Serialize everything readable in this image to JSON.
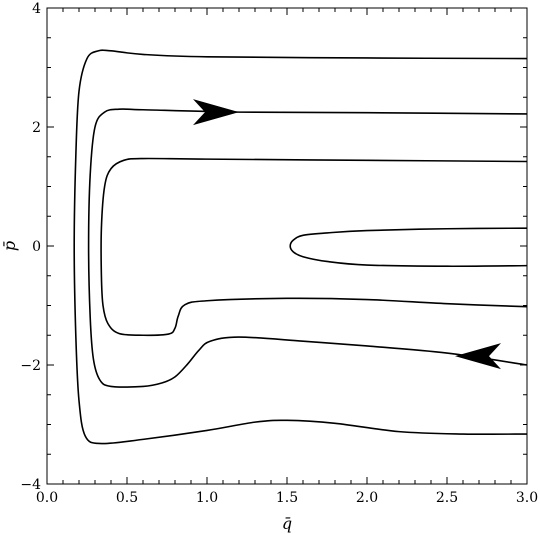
{
  "chart_data": {
    "type": "line",
    "title": "",
    "xlabel": "q̄",
    "ylabel": "p̄",
    "xlim": [
      0.0,
      3.0
    ],
    "ylim": [
      -4,
      4
    ],
    "xticks": [
      0.0,
      0.5,
      1.0,
      1.5,
      2.0,
      2.5,
      3.0
    ],
    "xtick_labels": [
      "0.0",
      "0.5",
      "1.0",
      "1.5",
      "2.0",
      "2.5",
      "3.0"
    ],
    "yticks": [
      -4,
      -2,
      0,
      2,
      4
    ],
    "ytick_labels": [
      "−4",
      "−2",
      "0",
      "2",
      "4"
    ],
    "grid": false,
    "series": [
      {
        "points": [
          [
            3.0,
            3.15
          ],
          [
            2.0,
            3.16
          ],
          [
            1.0,
            3.18
          ],
          [
            0.6,
            3.22
          ],
          [
            0.4,
            3.28
          ],
          [
            0.32,
            3.28
          ],
          [
            0.25,
            3.15
          ],
          [
            0.2,
            2.6
          ],
          [
            0.18,
            1.5
          ],
          [
            0.17,
            0.0
          ],
          [
            0.18,
            -1.5
          ],
          [
            0.2,
            -2.6
          ],
          [
            0.24,
            -3.2
          ],
          [
            0.34,
            -3.32
          ],
          [
            0.6,
            -3.25
          ],
          [
            1.0,
            -3.1
          ],
          [
            1.3,
            -2.96
          ],
          [
            1.5,
            -2.93
          ],
          [
            1.8,
            -2.98
          ],
          [
            2.2,
            -3.12
          ],
          [
            2.6,
            -3.16
          ],
          [
            3.0,
            -3.16
          ]
        ]
      },
      {
        "points": [
          [
            3.0,
            2.22
          ],
          [
            2.0,
            2.24
          ],
          [
            1.2,
            2.25
          ],
          [
            0.6,
            2.29
          ],
          [
            0.45,
            2.3
          ],
          [
            0.36,
            2.25
          ],
          [
            0.3,
            2.0
          ],
          [
            0.27,
            1.2
          ],
          [
            0.26,
            0.0
          ],
          [
            0.27,
            -1.2
          ],
          [
            0.29,
            -1.9
          ],
          [
            0.33,
            -2.25
          ],
          [
            0.4,
            -2.36
          ],
          [
            0.6,
            -2.36
          ],
          [
            0.72,
            -2.3
          ],
          [
            0.8,
            -2.2
          ],
          [
            0.88,
            -1.98
          ],
          [
            0.95,
            -1.75
          ],
          [
            1.02,
            -1.6
          ],
          [
            1.2,
            -1.53
          ],
          [
            1.6,
            -1.6
          ],
          [
            2.0,
            -1.68
          ],
          [
            2.5,
            -1.8
          ],
          [
            3.0,
            -2.0
          ]
        ]
      },
      {
        "points": [
          [
            3.0,
            1.42
          ],
          [
            2.0,
            1.44
          ],
          [
            1.0,
            1.46
          ],
          [
            0.6,
            1.47
          ],
          [
            0.48,
            1.44
          ],
          [
            0.4,
            1.3
          ],
          [
            0.36,
            1.0
          ],
          [
            0.34,
            0.3
          ],
          [
            0.34,
            -0.5
          ],
          [
            0.35,
            -1.0
          ],
          [
            0.38,
            -1.3
          ],
          [
            0.45,
            -1.47
          ],
          [
            0.6,
            -1.5
          ],
          [
            0.76,
            -1.48
          ],
          [
            0.8,
            -1.38
          ],
          [
            0.82,
            -1.18
          ],
          [
            0.86,
            -0.99
          ],
          [
            1.0,
            -0.92
          ],
          [
            1.5,
            -0.88
          ],
          [
            2.0,
            -0.9
          ],
          [
            2.5,
            -0.97
          ],
          [
            3.0,
            -1.02
          ]
        ]
      },
      {
        "points": [
          [
            3.0,
            0.3
          ],
          [
            2.5,
            0.29
          ],
          [
            2.0,
            0.26
          ],
          [
            1.75,
            0.22
          ],
          [
            1.6,
            0.18
          ],
          [
            1.54,
            0.1
          ],
          [
            1.52,
            0.0
          ],
          [
            1.54,
            -0.1
          ],
          [
            1.6,
            -0.18
          ],
          [
            1.75,
            -0.26
          ],
          [
            2.0,
            -0.32
          ],
          [
            2.5,
            -0.34
          ],
          [
            3.0,
            -0.33
          ]
        ]
      }
    ],
    "annotations": [
      {
        "type": "arrow",
        "direction": "right",
        "x": 1.2,
        "y": 2.25
      },
      {
        "type": "arrow",
        "direction": "left",
        "x": 2.55,
        "y": -1.85
      }
    ]
  }
}
